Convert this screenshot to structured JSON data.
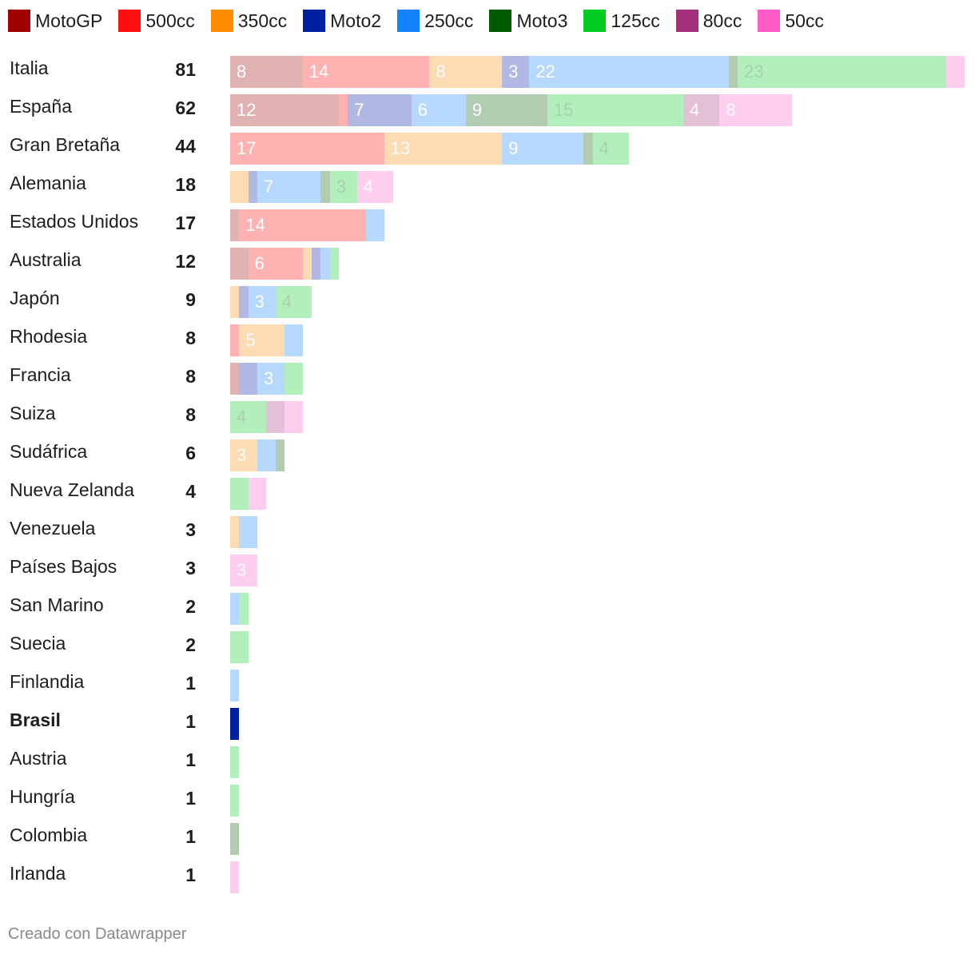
{
  "chart_data": {
    "type": "bar",
    "orientation": "horizontal",
    "stacked": true,
    "legend_position": "top",
    "series": [
      {
        "name": "MotoGP",
        "color": "#a00000",
        "light": "#e0b2b2"
      },
      {
        "name": "500cc",
        "color": "#ff1010",
        "light": "#ffb2b2"
      },
      {
        "name": "350cc",
        "color": "#ff8c00",
        "light": "#fddbb3"
      },
      {
        "name": "Moto2",
        "color": "#0020a0",
        "light": "#b2b8e4"
      },
      {
        "name": "250cc",
        "color": "#1483ff",
        "light": "#b6d8ff"
      },
      {
        "name": "Moto3",
        "color": "#005a00",
        "light": "#b2ccb2"
      },
      {
        "name": "125cc",
        "color": "#00cc22",
        "light": "#b2efbd"
      },
      {
        "name": "80cc",
        "color": "#a3307a",
        "light": "#e4c0d6"
      },
      {
        "name": "50cc",
        "color": "#ff5cc8",
        "light": "#ffcdee"
      }
    ],
    "rows": [
      {
        "label": "Italia",
        "total": "81",
        "values": [
          8,
          14,
          8,
          3,
          22,
          1,
          23,
          0,
          2
        ]
      },
      {
        "label": "España",
        "total": "62",
        "values": [
          12,
          1,
          0,
          7,
          6,
          9,
          15,
          4,
          8
        ]
      },
      {
        "label": "Gran Bretaña",
        "total": "44",
        "values": [
          0,
          17,
          13,
          0,
          9,
          1,
          4,
          0,
          0
        ]
      },
      {
        "label": "Alemania",
        "total": "18",
        "values": [
          0,
          0,
          2,
          1,
          7,
          1,
          3,
          0,
          4
        ]
      },
      {
        "label": "Estados Unidos",
        "total": "17",
        "values": [
          1,
          14,
          0,
          0,
          2,
          0,
          0,
          0,
          0
        ]
      },
      {
        "label": "Australia",
        "total": "12",
        "values": [
          2,
          6,
          1,
          1,
          1,
          0,
          1,
          0,
          0
        ]
      },
      {
        "label": "Japón",
        "total": "9",
        "values": [
          0,
          0,
          1,
          1,
          3,
          0,
          4,
          0,
          0
        ]
      },
      {
        "label": "Rhodesia",
        "total": "8",
        "values": [
          0,
          1,
          5,
          0,
          2,
          0,
          0,
          0,
          0
        ]
      },
      {
        "label": "Francia",
        "total": "8",
        "values": [
          1,
          0,
          0,
          2,
          3,
          0,
          2,
          0,
          0
        ]
      },
      {
        "label": "Suiza",
        "total": "8",
        "values": [
          0,
          0,
          0,
          0,
          0,
          0,
          4,
          2,
          2
        ]
      },
      {
        "label": "Sudáfrica",
        "total": "6",
        "values": [
          0,
          0,
          3,
          0,
          2,
          1,
          0,
          0,
          0
        ]
      },
      {
        "label": "Nueva Zelanda",
        "total": "4",
        "values": [
          0,
          0,
          0,
          0,
          0,
          0,
          2,
          0,
          2
        ]
      },
      {
        "label": "Venezuela",
        "total": "3",
        "values": [
          0,
          0,
          1,
          0,
          2,
          0,
          0,
          0,
          0
        ]
      },
      {
        "label": "Países Bajos",
        "total": "3",
        "values": [
          0,
          0,
          0,
          0,
          0,
          0,
          0,
          0,
          3
        ]
      },
      {
        "label": "San Marino",
        "total": "2",
        "values": [
          0,
          0,
          0,
          0,
          1,
          0,
          1,
          0,
          0
        ]
      },
      {
        "label": "Suecia",
        "total": "2",
        "values": [
          0,
          0,
          0,
          0,
          0,
          0,
          2,
          0,
          0
        ]
      },
      {
        "label": "Finlandia",
        "total": "1",
        "values": [
          0,
          0,
          0,
          0,
          1,
          0,
          0,
          0,
          0
        ]
      },
      {
        "label": "Brasil",
        "total": "1",
        "values": [
          0,
          0,
          0,
          1,
          0,
          0,
          0,
          0,
          0
        ],
        "highlight": true
      },
      {
        "label": "Austria",
        "total": "1",
        "values": [
          0,
          0,
          0,
          0,
          0,
          0,
          1,
          0,
          0
        ]
      },
      {
        "label": "Hungría",
        "total": "1",
        "values": [
          0,
          0,
          0,
          0,
          0,
          0,
          1,
          0,
          0
        ]
      },
      {
        "label": "Colombia",
        "total": "1",
        "values": [
          0,
          0,
          0,
          0,
          0,
          1,
          0,
          0,
          0
        ]
      },
      {
        "label": "Irlanda",
        "total": "1",
        "values": [
          0,
          0,
          0,
          0,
          0,
          0,
          0,
          0,
          1
        ]
      }
    ],
    "label_min_value": 3
  },
  "footer": "Creado con Datawrapper"
}
